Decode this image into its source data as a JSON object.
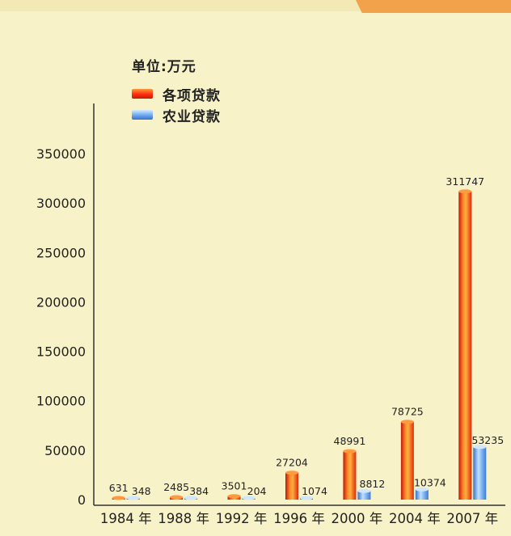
{
  "chart_data": {
    "type": "bar",
    "unit_label": "单位:万元",
    "categories": [
      "1984 年",
      "1988 年",
      "1992 年",
      "1996 年",
      "2000 年",
      "2004 年",
      "2007 年"
    ],
    "series": [
      {
        "name": "各项贷款",
        "values": [
          631,
          2485,
          3501,
          27204,
          48991,
          78725,
          311747
        ],
        "color": "#ff3a10"
      },
      {
        "name": "农业贷款",
        "values": [
          348,
          384,
          204,
          1074,
          8812,
          10374,
          53235
        ],
        "color": "#5a9ae8"
      }
    ],
    "y_ticks": [
      "0",
      "50000",
      "100000",
      "150000",
      "200000",
      "250000",
      "300000",
      "350000"
    ],
    "ylim": [
      0,
      350000
    ],
    "grid": false,
    "legend_position": "top-left"
  }
}
